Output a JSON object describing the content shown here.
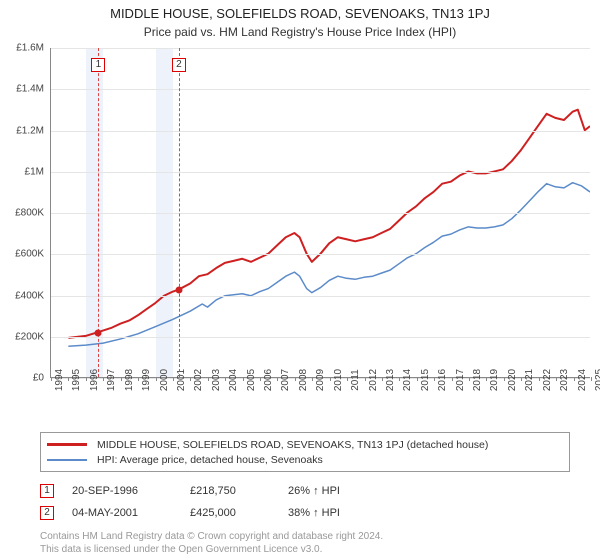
{
  "title": "MIDDLE HOUSE, SOLEFIELDS ROAD, SEVENOAKS, TN13 1PJ",
  "subtitle": "Price paid vs. HM Land Registry's House Price Index (HPI)",
  "chart": {
    "type": "line",
    "x_axis": {
      "min_year": 1994,
      "max_year": 2025,
      "ticks": [
        1994,
        1995,
        1996,
        1997,
        1998,
        1999,
        2000,
        2001,
        2002,
        2003,
        2004,
        2005,
        2006,
        2007,
        2008,
        2009,
        2010,
        2011,
        2012,
        2013,
        2014,
        2015,
        2016,
        2017,
        2018,
        2019,
        2020,
        2021,
        2022,
        2023,
        2024,
        2025
      ]
    },
    "y_axis": {
      "min": 0,
      "max": 1600000,
      "ticks": [
        {
          "v": 0,
          "label": "£0"
        },
        {
          "v": 200000,
          "label": "£200K"
        },
        {
          "v": 400000,
          "label": "£400K"
        },
        {
          "v": 600000,
          "label": "£600K"
        },
        {
          "v": 800000,
          "label": "£800K"
        },
        {
          "v": 1000000,
          "label": "£1M"
        },
        {
          "v": 1200000,
          "label": "£1.2M"
        },
        {
          "v": 1400000,
          "label": "£1.4M"
        },
        {
          "v": 1600000,
          "label": "£1.6M"
        }
      ]
    },
    "grid_color": "#e5e5e5",
    "background_color": "#ffffff",
    "shade_color": "#eef3fb",
    "shade_ranges": [
      [
        1996,
        1997
      ],
      [
        2000,
        2001
      ]
    ],
    "marker_lines": [
      {
        "id": "1",
        "year": 1996.72,
        "color": "#d44"
      },
      {
        "id": "2",
        "year": 2001.34,
        "color": "#d44"
      }
    ],
    "series": [
      {
        "name": "MIDDLE HOUSE, SOLEFIELDS ROAD, SEVENOAKS, TN13 1PJ (detached house)",
        "color": "#ce2020",
        "line_width": 2,
        "points": [
          [
            1995.0,
            190000
          ],
          [
            1995.5,
            195000
          ],
          [
            1996.0,
            200000
          ],
          [
            1996.72,
            218750
          ],
          [
            1997.5,
            240000
          ],
          [
            1998.0,
            260000
          ],
          [
            1998.5,
            275000
          ],
          [
            1999.0,
            300000
          ],
          [
            1999.5,
            330000
          ],
          [
            2000.0,
            360000
          ],
          [
            2000.5,
            395000
          ],
          [
            2001.0,
            415000
          ],
          [
            2001.34,
            425000
          ],
          [
            2002.0,
            455000
          ],
          [
            2002.5,
            490000
          ],
          [
            2003.0,
            500000
          ],
          [
            2003.5,
            530000
          ],
          [
            2004.0,
            555000
          ],
          [
            2004.5,
            565000
          ],
          [
            2005.0,
            575000
          ],
          [
            2005.5,
            560000
          ],
          [
            2006.0,
            580000
          ],
          [
            2006.5,
            600000
          ],
          [
            2007.0,
            640000
          ],
          [
            2007.5,
            680000
          ],
          [
            2008.0,
            700000
          ],
          [
            2008.3,
            680000
          ],
          [
            2008.7,
            600000
          ],
          [
            2009.0,
            560000
          ],
          [
            2009.5,
            600000
          ],
          [
            2010.0,
            650000
          ],
          [
            2010.5,
            680000
          ],
          [
            2011.0,
            670000
          ],
          [
            2011.5,
            660000
          ],
          [
            2012.0,
            670000
          ],
          [
            2012.5,
            680000
          ],
          [
            2013.0,
            700000
          ],
          [
            2013.5,
            720000
          ],
          [
            2014.0,
            760000
          ],
          [
            2014.5,
            800000
          ],
          [
            2015.0,
            830000
          ],
          [
            2015.5,
            870000
          ],
          [
            2016.0,
            900000
          ],
          [
            2016.5,
            940000
          ],
          [
            2017.0,
            950000
          ],
          [
            2017.5,
            980000
          ],
          [
            2018.0,
            1000000
          ],
          [
            2018.5,
            990000
          ],
          [
            2019.0,
            990000
          ],
          [
            2019.5,
            1000000
          ],
          [
            2020.0,
            1010000
          ],
          [
            2020.5,
            1050000
          ],
          [
            2021.0,
            1100000
          ],
          [
            2021.5,
            1160000
          ],
          [
            2022.0,
            1220000
          ],
          [
            2022.5,
            1280000
          ],
          [
            2023.0,
            1260000
          ],
          [
            2023.5,
            1250000
          ],
          [
            2024.0,
            1290000
          ],
          [
            2024.3,
            1300000
          ],
          [
            2024.7,
            1200000
          ],
          [
            2025.0,
            1220000
          ]
        ]
      },
      {
        "name": "HPI: Average price, detached house, Sevenoaks",
        "color": "#5b8bc9",
        "line_width": 1.5,
        "points": [
          [
            1995.0,
            150000
          ],
          [
            1996.0,
            155000
          ],
          [
            1997.0,
            165000
          ],
          [
            1998.0,
            185000
          ],
          [
            1999.0,
            210000
          ],
          [
            2000.0,
            245000
          ],
          [
            2001.0,
            280000
          ],
          [
            2002.0,
            320000
          ],
          [
            2002.7,
            355000
          ],
          [
            2003.0,
            340000
          ],
          [
            2003.5,
            375000
          ],
          [
            2004.0,
            395000
          ],
          [
            2004.5,
            400000
          ],
          [
            2005.0,
            405000
          ],
          [
            2005.5,
            395000
          ],
          [
            2006.0,
            415000
          ],
          [
            2006.5,
            430000
          ],
          [
            2007.0,
            460000
          ],
          [
            2007.5,
            490000
          ],
          [
            2008.0,
            510000
          ],
          [
            2008.3,
            490000
          ],
          [
            2008.7,
            430000
          ],
          [
            2009.0,
            410000
          ],
          [
            2009.5,
            435000
          ],
          [
            2010.0,
            470000
          ],
          [
            2010.5,
            490000
          ],
          [
            2011.0,
            480000
          ],
          [
            2011.5,
            475000
          ],
          [
            2012.0,
            485000
          ],
          [
            2012.5,
            490000
          ],
          [
            2013.0,
            505000
          ],
          [
            2013.5,
            520000
          ],
          [
            2014.0,
            550000
          ],
          [
            2014.5,
            580000
          ],
          [
            2015.0,
            600000
          ],
          [
            2015.5,
            630000
          ],
          [
            2016.0,
            655000
          ],
          [
            2016.5,
            685000
          ],
          [
            2017.0,
            695000
          ],
          [
            2017.5,
            715000
          ],
          [
            2018.0,
            730000
          ],
          [
            2018.5,
            725000
          ],
          [
            2019.0,
            725000
          ],
          [
            2019.5,
            730000
          ],
          [
            2020.0,
            740000
          ],
          [
            2020.5,
            770000
          ],
          [
            2021.0,
            810000
          ],
          [
            2021.5,
            855000
          ],
          [
            2022.0,
            900000
          ],
          [
            2022.5,
            940000
          ],
          [
            2023.0,
            925000
          ],
          [
            2023.5,
            920000
          ],
          [
            2024.0,
            945000
          ],
          [
            2024.5,
            930000
          ],
          [
            2025.0,
            900000
          ]
        ]
      }
    ],
    "sale_dots": [
      {
        "year": 1996.72,
        "value": 218750,
        "color": "#ce2020"
      },
      {
        "year": 2001.34,
        "value": 425000,
        "color": "#ce2020"
      }
    ]
  },
  "legend": {
    "series1": "MIDDLE HOUSE, SOLEFIELDS ROAD, SEVENOAKS, TN13 1PJ (detached house)",
    "series2": "HPI: Average price, detached house, Sevenoaks"
  },
  "sales": [
    {
      "id": "1",
      "date": "20-SEP-1996",
      "price": "£218,750",
      "pct": "26% ↑ HPI"
    },
    {
      "id": "2",
      "date": "04-MAY-2001",
      "price": "£425,000",
      "pct": "38% ↑ HPI"
    }
  ],
  "attribution": {
    "line1": "Contains HM Land Registry data © Crown copyright and database right 2024.",
    "line2": "This data is licensed under the Open Government Licence v3.0."
  }
}
